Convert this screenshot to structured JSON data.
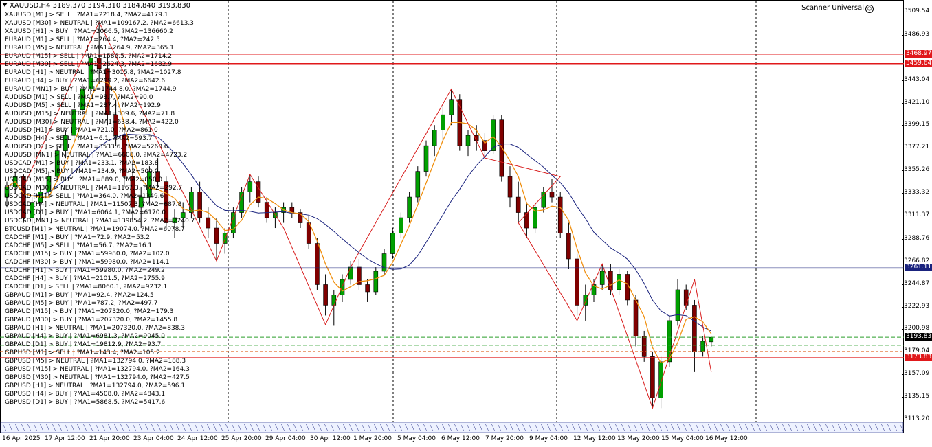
{
  "header": {
    "symbol_title": "XAUUSD,H4",
    "ohlc": "3189,370 3194.310 3184.840 3193.830"
  },
  "scanner_title": "Scanner Universal",
  "scanner_lines": [
    "XAUUSD [M1] > SELL | ?MA1=2218.4, ?MA2=4179.1",
    "XAUUSD [M30] > NEUTRAL | ?MA1=109167.2, ?MA2=6613.3",
    "XAUUSD [H1] > BUY | ?MA1=2066.5, ?MA2=136660.2",
    "EURAUD [M1] > SELL | ?MA1=264.4, ?MA2=242.5",
    "EURAUD [M5] > NEUTRAL | ?MA1=264.9, ?MA2=365.1",
    "EURAUD [M15] > SELL | ?MA1=1586.5, ?MA2=1714.2",
    "EURAUD [M30] > SELL | ?MA1=2624.3, ?MA2=1682.9",
    "EURAUD [H1] > NEUTRAL | ?MA1=3015.8, ?MA2=1027.8",
    "EURAUD [H4] > BUY | ?MA1=6299.2, ?MA2=6642.6",
    "EURAUD [MN1] > BUY | ?MA1=1744.8.0, ?MA2=1744.9",
    "AUDUSD [M1] > SELL | ?MA1=98.7, ?MA2=90.0",
    "AUDUSD [M5] > SELL | ?MA1=287.4, ?MA2=192.9",
    "AUDUSD [M15] > NEUTRAL | ?MA1=309.6, ?MA2=71.8",
    "AUDUSD [M30] > NEUTRAL | ?MA1=638.4, ?MA2=422.0",
    "AUDUSD [H1] > BUY | ?MA1=721.0, ?MA2=861.0",
    "AUDUSD [H4] > SELL | ?MA1=6.1, ?MA2=593.7",
    "AUDUSD [D1] > SELL | ?MA1=3533.6, ?MA2=5260.6",
    "AUDUSD [MN1] > NEUTRAL | ?MA1=6608.0, ?MA2=4723.2",
    "USDCAD [M1] > BUY | ?MA1=233.1, ?MA2=183.8",
    "USDCAD [M5] > BUY | ?MA1=234.9, ?MA2=500.0",
    "USDCAD [M15] > BUY | ?MA1=889.0, ?MA2=850.0",
    "USDCAD [M30] > NEUTRAL | ?MA1=1167.3, ?MA2=292.7",
    "USDCAD [H1] > SELL | ?MA1=364.0, ?MA2=1349.6",
    "USDCAD [H4] > NEUTRAL | ?MA1=11507.3, ?MA2=687.8",
    "USDCAD [D1] > BUY | ?MA1=6064.1, ?MA2=6170.0",
    "USDCAD [MN1] > NEUTRAL | ?MA1=139854.2, ?MA2=2240.7",
    "BTCUSD [M1] > NEUTRAL | ?MA1=19074.0, ?MA2=6078.7",
    "CADCHF [M1] > BUY | ?MA1=72.9, ?MA2=53.2",
    "CADCHF [M5] > SELL | ?MA1=56.7, ?MA2=16.1",
    "CADCHF [M15] > BUY | ?MA1=59980.0, ?MA2=102.0",
    "CADCHF [M30] > BUY | ?MA1=59980.0, ?MA2=114.1",
    "CADCHF [H1] > BUY | ?MA1=59980.0, ?MA2=249.2",
    "CADCHF [H4] > BUY | ?MA1=2101.5, ?MA2=2755.9",
    "CADCHF [D1] > SELL | ?MA1=8060.1, ?MA2=9232.1",
    "GBPAUD [M1] > BUY | ?MA1=92.4, ?MA2=124.5",
    "GBPAUD [M5] > BUY | ?MA1=787.2, ?MA2=497.7",
    "GBPAUD [M15] > BUY | ?MA1=207320.0, ?MA2=179.3",
    "GBPAUD [M30] > BUY | ?MA1=207320.0, ?MA2=1455.8",
    "GBPAUD [H1] > NEUTRAL | ?MA1=207320.0, ?MA2=838.3",
    "GBPAUD [H4] > BUY | ?MA1=6981.3, ?MA2=9045.0",
    "GBPAUD [D1] > BUY | ?MA1=19812.9, ?MA2=93.7",
    "GBPUSD [M1] > SELL | ?MA1=143.4, ?MA2=105.2",
    "GBPUSD [M5] > NEUTRAL | ?MA1=132794.0, ?MA2=188.3",
    "GBPUSD [M15] > NEUTRAL | ?MA1=132794.0, ?MA2=164.3",
    "GBPUSD [M30] > NEUTRAL | ?MA1=132794.0, ?MA2=427.5",
    "GBPUSD [H1] > NEUTRAL | ?MA1=132794.0, ?MA2=596.1",
    "GBPUSD [H4] > BUY | ?MA1=4508.0, ?MA2=4843.1",
    "GBPUSD [D1] > BUY | ?MA1=5868.5, ?MA2=5417.6"
  ],
  "price_ticks": [
    "3509.54",
    "3486.93",
    "3465.01",
    "3443.04",
    "3421.10",
    "3399.15",
    "3377.21",
    "3355.26",
    "3333.32",
    "3311.37",
    "3288.76",
    "3266.82",
    "3244.87",
    "3222.93",
    "3200.98",
    "3179.04",
    "3157.09",
    "3135.15",
    "3113.20"
  ],
  "price_tags": [
    {
      "label": "3468.97",
      "price": 3468.97,
      "color": "#e0191b"
    },
    {
      "label": "3459.64",
      "price": 3459.64,
      "color": "#e0191b"
    },
    {
      "label": "3261.11",
      "price": 3261.11,
      "color": "#1a237e"
    },
    {
      "label": "3193.83",
      "price": 3193.83,
      "color": "#000000"
    },
    {
      "label": "3173.83",
      "price": 3173.83,
      "color": "#e0191b"
    }
  ],
  "time_labels": [
    "16 Apr 2025",
    "17 Apr 12:00",
    "21 Apr 20:00",
    "23 Apr 04:00",
    "24 Apr 12:00",
    "25 Apr 20:00",
    "29 Apr 04:00",
    "30 Apr 12:00",
    "1 May 20:00",
    "5 May 04:00",
    "6 May 12:00",
    "7 May 20:00",
    "9 May 04:00",
    "12 May 12:00",
    "13 May 20:00",
    "15 May 04:00",
    "16 May 12:00"
  ],
  "colors": {
    "bull": "#00a000",
    "bear": "#800000",
    "zigzag": "#d81b1b",
    "ma_fast": "#f09010",
    "ma_slow": "#1a237e"
  },
  "chart_data": {
    "type": "candlestick",
    "symbol": "XAUUSD",
    "timeframe": "H4",
    "ylim": [
      3113.2,
      3509.54
    ],
    "candles": [
      [
        3330,
        3345,
        3320,
        3340
      ],
      [
        3340,
        3355,
        3333,
        3350
      ],
      [
        3350,
        3352,
        3305,
        3310
      ],
      [
        3310,
        3330,
        3300,
        3325
      ],
      [
        3325,
        3340,
        3310,
        3335
      ],
      [
        3335,
        3355,
        3330,
        3350
      ],
      [
        3350,
        3380,
        3345,
        3375
      ],
      [
        3375,
        3395,
        3368,
        3390
      ],
      [
        3390,
        3420,
        3385,
        3415
      ],
      [
        3415,
        3440,
        3410,
        3435
      ],
      [
        3435,
        3470,
        3430,
        3465
      ],
      [
        3465,
        3500,
        3440,
        3455
      ],
      [
        3455,
        3468,
        3400,
        3410
      ],
      [
        3410,
        3425,
        3380,
        3390
      ],
      [
        3390,
        3400,
        3340,
        3350
      ],
      [
        3350,
        3365,
        3310,
        3320
      ],
      [
        3320,
        3340,
        3300,
        3330
      ],
      [
        3330,
        3360,
        3325,
        3355
      ],
      [
        3355,
        3368,
        3340,
        3345
      ],
      [
        3345,
        3350,
        3300,
        3305
      ],
      [
        3305,
        3318,
        3290,
        3310
      ],
      [
        3310,
        3325,
        3300,
        3315
      ],
      [
        3315,
        3340,
        3310,
        3335
      ],
      [
        3335,
        3345,
        3305,
        3310
      ],
      [
        3310,
        3320,
        3290,
        3300
      ],
      [
        3300,
        3310,
        3268,
        3285
      ],
      [
        3285,
        3300,
        3275,
        3295
      ],
      [
        3295,
        3320,
        3290,
        3315
      ],
      [
        3315,
        3340,
        3310,
        3335
      ],
      [
        3335,
        3352,
        3325,
        3345
      ],
      [
        3345,
        3350,
        3320,
        3325
      ],
      [
        3325,
        3330,
        3305,
        3310
      ],
      [
        3310,
        3320,
        3300,
        3315
      ],
      [
        3315,
        3325,
        3305,
        3320
      ],
      [
        3320,
        3325,
        3310,
        3315
      ],
      [
        3315,
        3318,
        3300,
        3305
      ],
      [
        3305,
        3312,
        3280,
        3285
      ],
      [
        3285,
        3290,
        3240,
        3245
      ],
      [
        3245,
        3255,
        3215,
        3225
      ],
      [
        3225,
        3240,
        3205,
        3235
      ],
      [
        3235,
        3255,
        3228,
        3250
      ],
      [
        3250,
        3268,
        3245,
        3262
      ],
      [
        3262,
        3270,
        3240,
        3245
      ],
      [
        3245,
        3250,
        3228,
        3238
      ],
      [
        3238,
        3262,
        3235,
        3258
      ],
      [
        3258,
        3280,
        3255,
        3275
      ],
      [
        3275,
        3300,
        3270,
        3295
      ],
      [
        3295,
        3315,
        3290,
        3310
      ],
      [
        3310,
        3335,
        3305,
        3330
      ],
      [
        3330,
        3360,
        3325,
        3355
      ],
      [
        3355,
        3385,
        3350,
        3380
      ],
      [
        3380,
        3400,
        3370,
        3395
      ],
      [
        3395,
        3420,
        3385,
        3410
      ],
      [
        3410,
        3435,
        3400,
        3425
      ],
      [
        3425,
        3430,
        3375,
        3380
      ],
      [
        3380,
        3395,
        3370,
        3390
      ],
      [
        3390,
        3400,
        3375,
        3385
      ],
      [
        3385,
        3392,
        3368,
        3375
      ],
      [
        3375,
        3410,
        3372,
        3405
      ],
      [
        3405,
        3410,
        3345,
        3350
      ],
      [
        3350,
        3360,
        3320,
        3330
      ],
      [
        3330,
        3345,
        3305,
        3315
      ],
      [
        3315,
        3325,
        3290,
        3300
      ],
      [
        3300,
        3325,
        3295,
        3320
      ],
      [
        3320,
        3340,
        3315,
        3335
      ],
      [
        3335,
        3348,
        3325,
        3330
      ],
      [
        3330,
        3335,
        3290,
        3295
      ],
      [
        3295,
        3305,
        3260,
        3270
      ],
      [
        3270,
        3275,
        3215,
        3225
      ],
      [
        3225,
        3245,
        3210,
        3235
      ],
      [
        3235,
        3250,
        3228,
        3245
      ],
      [
        3245,
        3265,
        3240,
        3258
      ],
      [
        3258,
        3265,
        3235,
        3240
      ],
      [
        3240,
        3260,
        3235,
        3255
      ],
      [
        3255,
        3258,
        3225,
        3230
      ],
      [
        3230,
        3235,
        3185,
        3195
      ],
      [
        3195,
        3200,
        3170,
        3175
      ],
      [
        3175,
        3180,
        3125,
        3135
      ],
      [
        3135,
        3175,
        3125,
        3170
      ],
      [
        3170,
        3215,
        3165,
        3210
      ],
      [
        3210,
        3250,
        3205,
        3240
      ],
      [
        3240,
        3245,
        3220,
        3225
      ],
      [
        3225,
        3230,
        3160,
        3180
      ],
      [
        3180,
        3195,
        3175,
        3190
      ],
      [
        3189.37,
        3194.31,
        3184.84,
        3193.83
      ]
    ],
    "zigzag_prices": [
      3340,
      3500,
      3268,
      3352,
      3300,
      3206,
      3262,
      3435,
      3368,
      3350,
      3305,
      3210,
      3265,
      3125,
      3250,
      3160
    ]
  }
}
